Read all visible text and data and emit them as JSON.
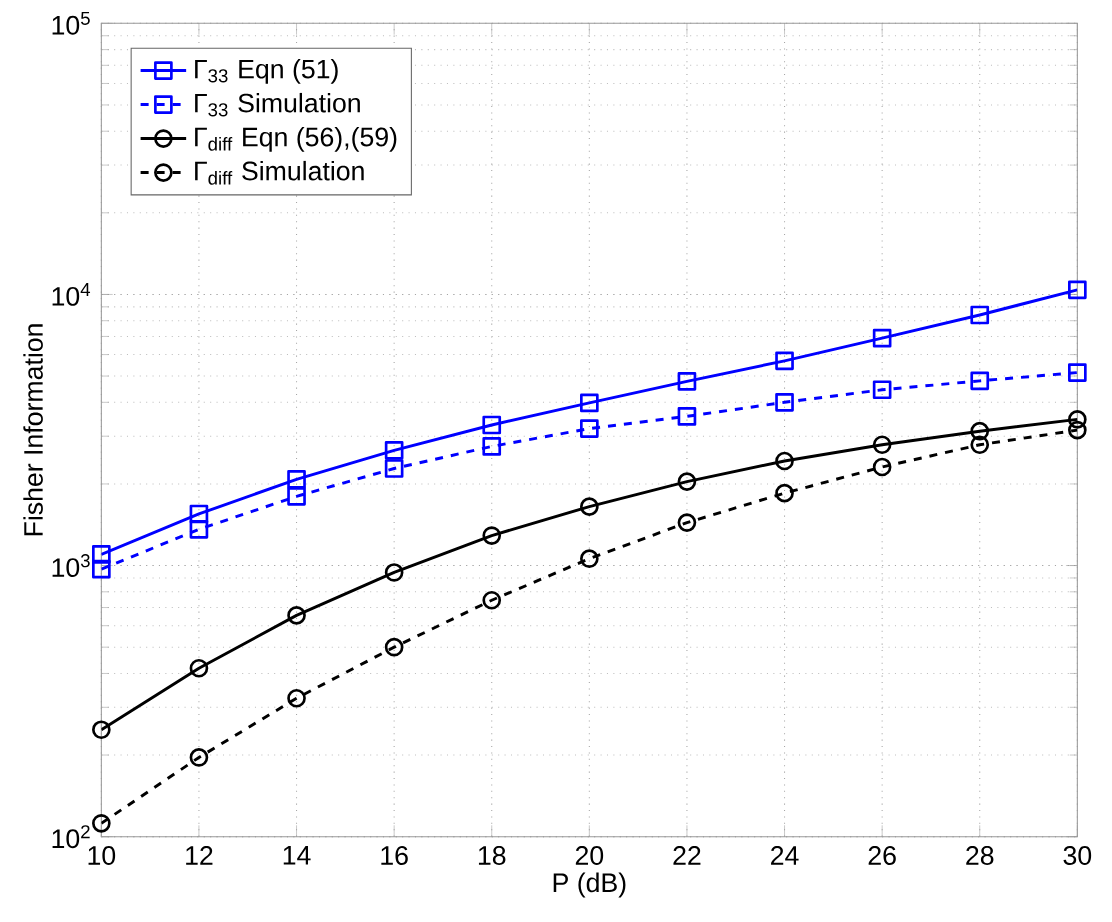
{
  "chart_data": {
    "type": "line",
    "xlabel": "P (dB)",
    "ylabel": "Fisher Information",
    "x": [
      10,
      12,
      14,
      16,
      18,
      20,
      22,
      24,
      26,
      28,
      30
    ],
    "series": [
      {
        "name": "Γ$_{33}$ Eqn (51)",
        "color": "#0000ff",
        "marker": "square",
        "line_style": "solid",
        "values": [
          1100,
          1550,
          2080,
          2660,
          3300,
          3980,
          4780,
          5690,
          6900,
          8400,
          10400
        ]
      },
      {
        "name": "Γ$_{33}$ Simulation",
        "color": "#0000ff",
        "marker": "square",
        "line_style": "dashed",
        "values": [
          970,
          1360,
          1800,
          2280,
          2750,
          3200,
          3550,
          4000,
          4450,
          4800,
          5150
        ]
      },
      {
        "name": "Γ$_{diff}$ Eqn (56),(59)",
        "color": "#000000",
        "marker": "circle",
        "line_style": "solid",
        "values": [
          248,
          418,
          655,
          943,
          1290,
          1650,
          2040,
          2430,
          2790,
          3130,
          3460
        ]
      },
      {
        "name": "Γ$_{diff}$ Simulation",
        "color": "#000000",
        "marker": "circle",
        "line_style": "dashed",
        "values": [
          112,
          196,
          324,
          500,
          745,
          1060,
          1440,
          1850,
          2310,
          2790,
          3160
        ]
      }
    ],
    "log": "y",
    "grid": true,
    "legend": "top left",
    "xlim": [
      10,
      30
    ],
    "xticks": [
      10,
      12,
      14,
      16,
      18,
      20,
      22,
      24,
      26,
      28,
      30
    ],
    "ylim": [
      100,
      100000
    ],
    "yticks": [
      {
        "value": 100,
        "label": "10$^{2}$"
      },
      {
        "value": 1000,
        "label": "10$^{3}$"
      },
      {
        "value": 10000,
        "label": "10$^{4}$"
      },
      {
        "value": 100000,
        "label": "10$^{5}$"
      }
    ]
  }
}
